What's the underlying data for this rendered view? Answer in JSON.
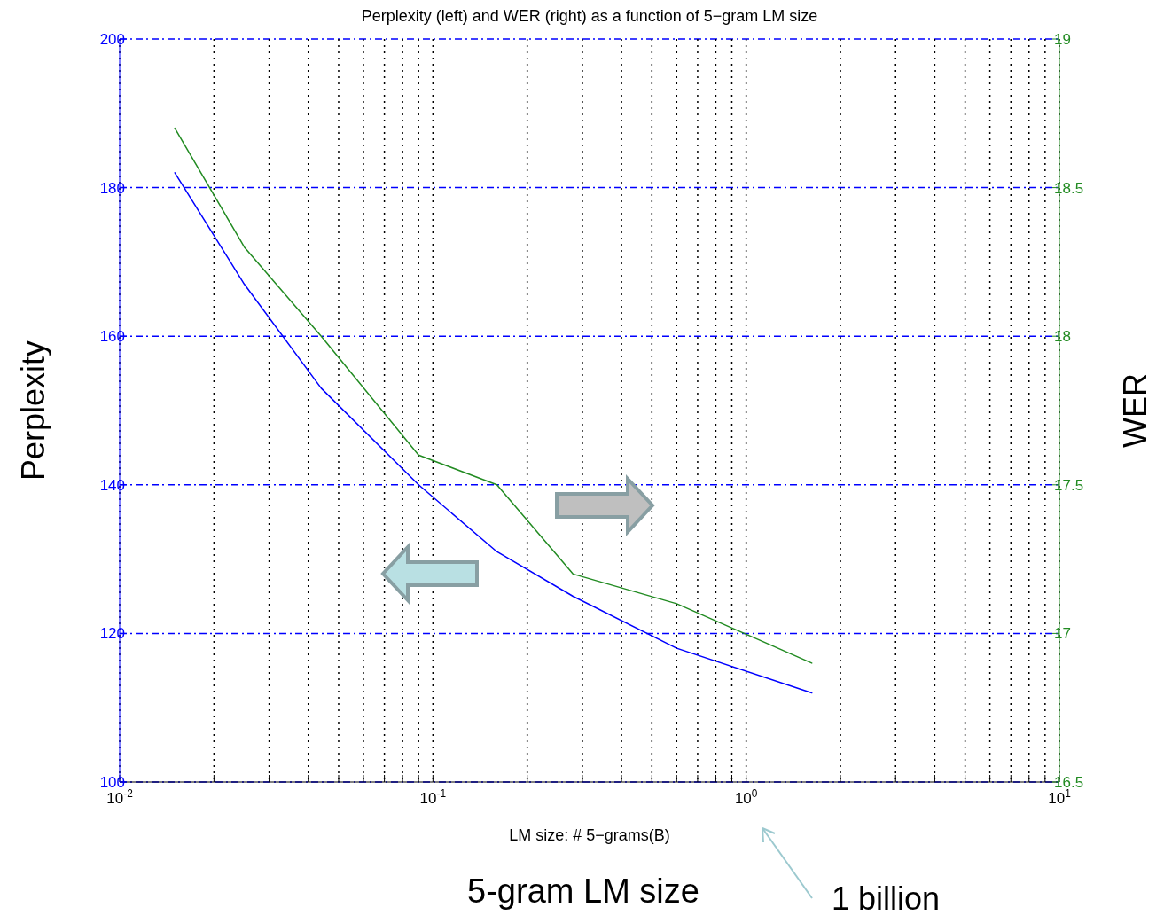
{
  "chart_data": {
    "type": "line",
    "title": "Perplexity (left) and WER (right) as a function of 5−gram LM size",
    "xlabel": "LM size: # 5−grams(B)",
    "ylabel": "Perplexity",
    "y2label": "WER",
    "x": [
      0.015,
      0.025,
      0.044,
      0.09,
      0.16,
      0.28,
      0.6,
      1.62
    ],
    "series": [
      {
        "color": "#0000ff",
        "values": [
          182,
          167,
          153,
          140,
          131,
          125,
          118,
          112
        ]
      },
      {
        "color": "#228b22",
        "axis": "y2",
        "values": [
          18.7,
          18.3,
          18.0,
          17.6,
          17.5,
          17.2,
          17.1,
          16.9
        ]
      }
    ],
    "log": "x",
    "xlim": [
      0.01,
      10
    ],
    "xticks": [
      {
        "value": 0.01,
        "label": "10$^{-2}$"
      },
      {
        "value": 0.02,
        "label": null
      },
      {
        "value": 0.03,
        "label": null
      },
      {
        "value": 0.04,
        "label": null
      },
      {
        "value": 0.05,
        "label": null
      },
      {
        "value": 0.06,
        "label": null
      },
      {
        "value": 0.07,
        "label": null
      },
      {
        "value": 0.08,
        "label": null
      },
      {
        "value": 0.09,
        "label": null
      },
      {
        "value": 0.1,
        "label": "10$^{-1}$"
      },
      {
        "value": 0.2,
        "label": null
      },
      {
        "value": 0.3,
        "label": null
      },
      {
        "value": 0.4,
        "label": null
      },
      {
        "value": 0.5,
        "label": null
      },
      {
        "value": 0.6,
        "label": null
      },
      {
        "value": 0.7,
        "label": null
      },
      {
        "value": 0.8,
        "label": null
      },
      {
        "value": 0.9,
        "label": null
      },
      {
        "value": 1,
        "label": "10$^{0}$"
      },
      {
        "value": 2,
        "label": null
      },
      {
        "value": 3,
        "label": null
      },
      {
        "value": 4,
        "label": null
      },
      {
        "value": 5,
        "label": null
      },
      {
        "value": 6,
        "label": null
      },
      {
        "value": 7,
        "label": null
      },
      {
        "value": 8,
        "label": null
      },
      {
        "value": 9,
        "label": null
      },
      {
        "value": 10,
        "label": "10$^{1}$"
      }
    ],
    "ylim": [
      100,
      200
    ],
    "yticks": [
      100,
      120,
      140,
      160,
      180,
      200
    ],
    "y2lim": [
      16.5,
      19
    ],
    "y2ticks": [
      16.5,
      17,
      17.5,
      18,
      18.5,
      19
    ],
    "grid": true,
    "marker": "none",
    "line_style": "solid",
    "annotations": [
      "5-gram LM size",
      "1 billion"
    ]
  }
}
